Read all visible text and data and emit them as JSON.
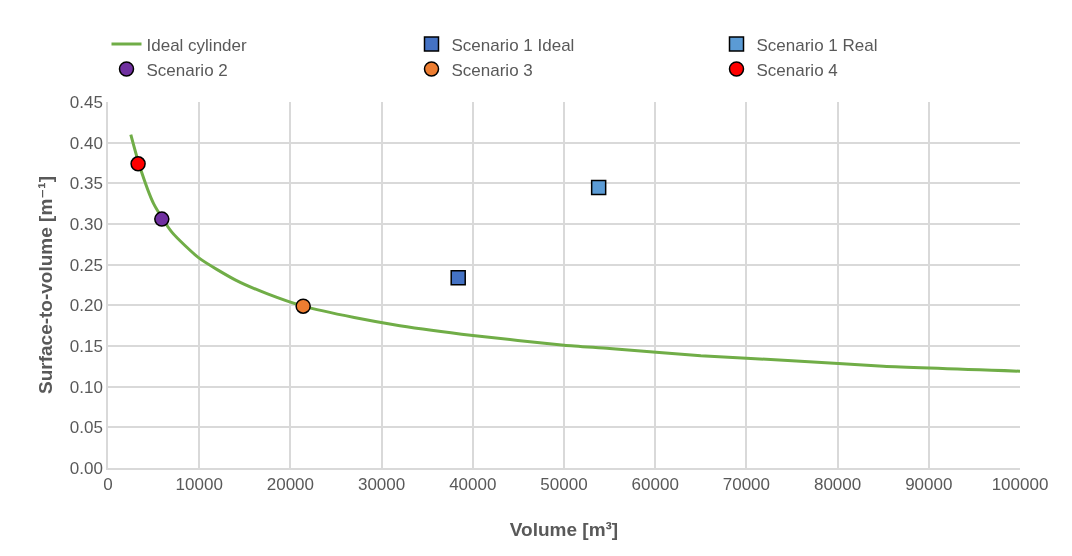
{
  "chart_data": {
    "type": "scatter",
    "xlabel": "Volume [m³]",
    "ylabel": "Surface-to-volume [m⁻¹]",
    "xlim": [
      0,
      100000
    ],
    "xticks": [
      0,
      10000,
      20000,
      30000,
      40000,
      50000,
      60000,
      70000,
      80000,
      90000,
      100000
    ],
    "ylim": [
      0,
      0.45
    ],
    "yticks": [
      {
        "value": 0,
        "label": "0.00"
      },
      {
        "value": 0.05,
        "label": "0.05"
      },
      {
        "value": 0.1,
        "label": "0.10"
      },
      {
        "value": 0.15,
        "label": "0.15"
      },
      {
        "value": 0.2,
        "label": "0.20"
      },
      {
        "value": 0.25,
        "label": "0.25"
      },
      {
        "value": 0.3,
        "label": "0.30"
      },
      {
        "value": 0.35,
        "label": "0.35"
      },
      {
        "value": 0.4,
        "label": "0.40"
      },
      {
        "value": 0.45,
        "label": "0.45"
      }
    ],
    "grid": true,
    "legend": "top",
    "series": [
      {
        "name": "Ideal cylinder",
        "type": "line",
        "marker": "none",
        "line_style": "solid",
        "color": "#70ad47",
        "x": [
          2500,
          3500,
          5000,
          7000,
          10000,
          14000,
          17500,
          21400,
          27000,
          32000,
          40000,
          50000,
          55000,
          65000,
          75000,
          85000,
          100000
        ],
        "values": [
          0.41,
          0.37,
          0.325,
          0.29,
          0.258,
          0.231,
          0.214,
          0.199,
          0.185,
          0.175,
          0.163,
          0.151,
          0.147,
          0.138,
          0.132,
          0.125,
          0.119
        ]
      },
      {
        "name": "Scenario 1 Ideal",
        "marker": "square",
        "color": "#4472c4",
        "x": [
          38400
        ],
        "values": [
          0.234
        ]
      },
      {
        "name": "Scenario 1 Real",
        "marker": "square",
        "color": "#5b9bd5",
        "x": [
          53800
        ],
        "values": [
          0.345
        ]
      },
      {
        "name": "Scenario 2",
        "marker": "circle",
        "color": "#7030a0",
        "x": [
          5900
        ],
        "values": [
          0.306
        ]
      },
      {
        "name": "Scenario 3",
        "marker": "circle",
        "color": "#ed7d31",
        "x": [
          21400
        ],
        "values": [
          0.199
        ]
      },
      {
        "name": "Scenario 4",
        "marker": "circle",
        "color": "#ff0000",
        "x": [
          3300
        ],
        "values": [
          0.374
        ]
      }
    ]
  }
}
